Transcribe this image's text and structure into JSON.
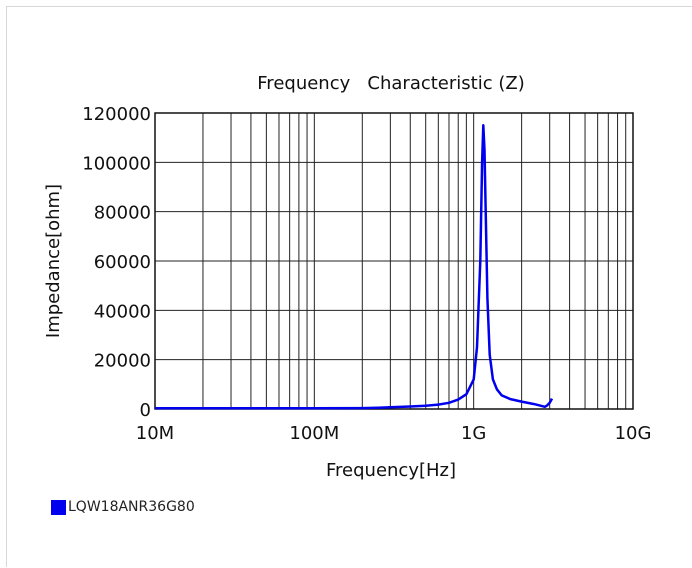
{
  "chart_data": {
    "type": "line",
    "title": "Frequency   Characteristic (Z)",
    "xlabel": "Frequency[Hz]",
    "ylabel": "Impedance[ohm]",
    "x_scale": "log",
    "xlim": [
      10000000,
      10000000000
    ],
    "ylim": [
      0,
      120000
    ],
    "x_ticks": [
      {
        "value": 10000000,
        "label": "10M"
      },
      {
        "value": 100000000,
        "label": "100M"
      },
      {
        "value": 1000000000,
        "label": "1G"
      },
      {
        "value": 10000000000,
        "label": "10G"
      }
    ],
    "y_ticks": [
      {
        "value": 0,
        "label": "0"
      },
      {
        "value": 20000,
        "label": "20000"
      },
      {
        "value": 40000,
        "label": "40000"
      },
      {
        "value": 60000,
        "label": "60000"
      },
      {
        "value": 80000,
        "label": "80000"
      },
      {
        "value": 100000,
        "label": "100000"
      },
      {
        "value": 120000,
        "label": "120000"
      }
    ],
    "grid": true,
    "legend_position": "bottom-left",
    "series": [
      {
        "name": "LQW18ANR36G80",
        "color": "#0000ee",
        "x": [
          10000000,
          30000000,
          100000000,
          200000000,
          250000000,
          300000000,
          400000000,
          500000000,
          600000000,
          700000000,
          800000000,
          900000000,
          1000000000,
          1050000000,
          1100000000,
          1130000000,
          1150000000,
          1170000000,
          1190000000,
          1220000000,
          1260000000,
          1320000000,
          1400000000,
          1500000000,
          1700000000,
          2000000000,
          2400000000,
          2800000000,
          2900000000,
          3000000000,
          3100000000
        ],
        "y": [
          300,
          300,
          300,
          350,
          500,
          700,
          1000,
          1300,
          1800,
          2500,
          3800,
          6000,
          12000,
          25000,
          60000,
          100000,
          115000,
          105000,
          80000,
          45000,
          22000,
          12000,
          8000,
          5500,
          4000,
          3000,
          2000,
          900,
          1500,
          2500,
          4200
        ]
      }
    ]
  }
}
